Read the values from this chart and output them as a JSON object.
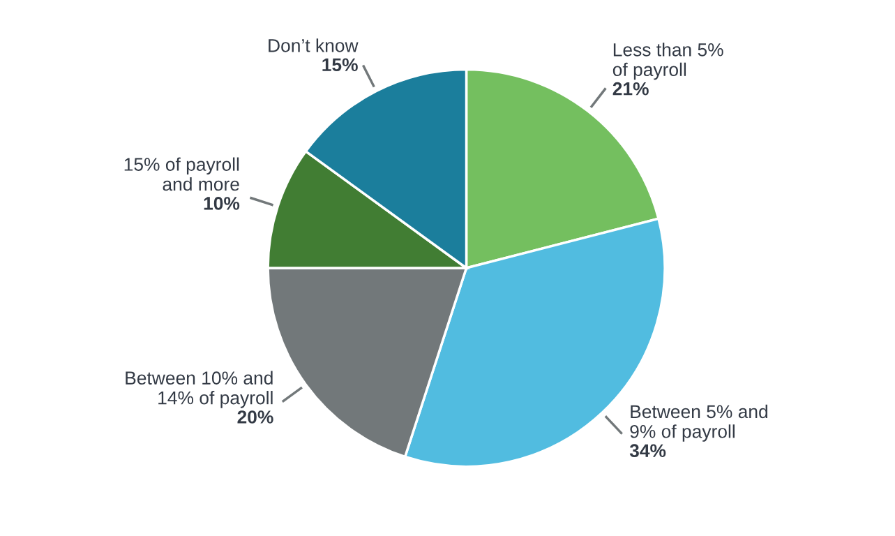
{
  "chart_data": {
    "type": "pie",
    "categories": [
      "Less than 5%\nof payroll",
      "Between 5% and\n9% of payroll",
      "Between 10% and\n14% of payroll",
      "15% of payroll\nand more",
      "Don’t know"
    ],
    "values": [
      21,
      34,
      20,
      10,
      15
    ],
    "colors": [
      "#74bf5f",
      "#51bce0",
      "#72787a",
      "#417d33",
      "#1b7e9c"
    ],
    "value_labels": [
      "21%",
      "34%",
      "20%",
      "10%",
      "15%"
    ]
  }
}
